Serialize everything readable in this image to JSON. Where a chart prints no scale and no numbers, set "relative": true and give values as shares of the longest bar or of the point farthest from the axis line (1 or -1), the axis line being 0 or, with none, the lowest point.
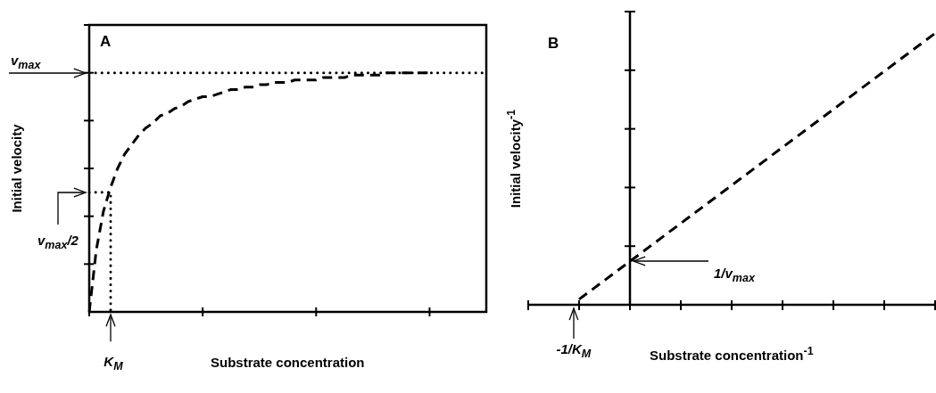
{
  "chart_data": [
    {
      "type": "line",
      "title": "A",
      "xlabel": "Substrate concentration",
      "ylabel": "Initial velocity",
      "relative": true,
      "marker": "none",
      "line_style": "dashed",
      "categories": [
        null,
        null,
        null,
        null,
        null,
        null,
        null,
        null,
        null,
        null,
        null,
        null,
        null,
        null,
        null,
        null,
        null,
        null,
        null,
        null,
        null,
        null,
        null,
        null,
        null,
        null,
        null,
        null,
        null,
        null,
        null,
        null,
        null,
        null,
        null,
        null,
        null,
        null,
        null,
        null,
        null,
        null,
        null,
        null,
        null,
        null,
        null,
        null,
        null,
        null,
        null,
        null,
        null,
        null,
        null,
        null,
        null
      ],
      "series": [
        {
          "color": "#000000",
          "values": [
            0,
            0.26,
            0.42,
            0.52,
            0.6,
            0.66,
            0.7,
            0.74,
            0.77,
            0.79,
            0.82,
            0.83,
            0.85,
            0.86,
            0.88,
            0.89,
            0.9,
            0.9,
            0.91,
            0.92,
            0.93,
            0.93,
            0.94,
            0.94,
            0.95,
            0.95,
            0.96,
            0.96,
            0.96,
            0.97,
            0.97,
            0.97,
            0.97,
            0.98,
            0.98,
            0.98,
            0.98,
            0.99,
            0.99,
            0.99,
            0.99,
            0.99,
            1.0,
            1.0,
            1.0,
            1.0,
            1.0,
            1.0,
            1.0,
            null,
            null,
            null,
            null,
            null,
            null,
            null,
            null
          ]
        },
        {
          "color": "#000000",
          "line_style": "dotted",
          "values": [
            0.5,
            0.5,
            0.5,
            0.5,
            null,
            null,
            null,
            null,
            null,
            null,
            null,
            null,
            null,
            null,
            null,
            null,
            null,
            null,
            null,
            null,
            null,
            null,
            null,
            null,
            null,
            null,
            null,
            null,
            null,
            null,
            null,
            null,
            null,
            null,
            null,
            null,
            null,
            null,
            null,
            null,
            null,
            null,
            null,
            null,
            null,
            null,
            null,
            null,
            null,
            null,
            null,
            null,
            null,
            null,
            null,
            null,
            null
          ]
        }
      ],
      "ref_lines": [
        {
          "axis": "y",
          "value": 1,
          "label": "v$_{max}$",
          "line_style": "dotted",
          "color": "#000000"
        }
      ],
      "annotations": [
        "v$_{max}$/2",
        "K$_{M}$"
      ]
    },
    {
      "type": "line",
      "title": "B",
      "xlabel": "Substrate concentration$^{-1}$",
      "ylabel": "Initial velocity$^{-1}$",
      "relative": true,
      "marker": "none",
      "line_style": "dashed",
      "categories": [
        null,
        null,
        null,
        null,
        null,
        null,
        null,
        null,
        null
      ],
      "series": [
        {
          "color": "#000000",
          "values": [
            null,
            0.02,
            0.16,
            0.3,
            0.44,
            0.58,
            0.72,
            0.86,
            1.0
          ]
        }
      ],
      "annotations": [
        "1/v$_{max}$",
        "-1/K$_{M}$"
      ]
    }
  ]
}
